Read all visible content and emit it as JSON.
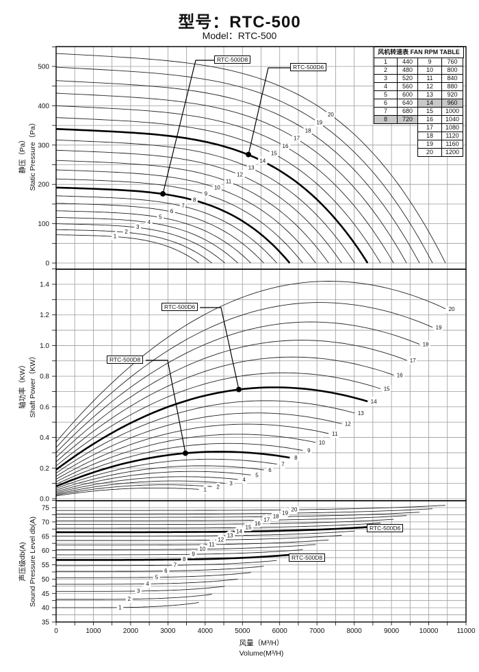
{
  "page": {
    "title_zh": "型号：RTC-500",
    "model_line": "Model：RTC-500"
  },
  "colors": {
    "highlight": "#c8c8c8",
    "grid": "#9a9a9a",
    "curve": "#222222",
    "bold_curve": "#000000",
    "text": "#111111"
  },
  "callouts": {
    "d8": "RTC-500D8",
    "d6": "RTC-500D6"
  },
  "fan_table": {
    "header": "风机转速表 FAN RPM TABLE",
    "highlighted_fans": [
      8,
      14
    ],
    "left_rows": [
      [
        1,
        440
      ],
      [
        2,
        480
      ],
      [
        3,
        520
      ],
      [
        4,
        560
      ],
      [
        5,
        600
      ],
      [
        6,
        640
      ],
      [
        7,
        680
      ],
      [
        8,
        720
      ]
    ],
    "right_rows": [
      [
        9,
        760
      ],
      [
        10,
        800
      ],
      [
        11,
        840
      ],
      [
        12,
        880
      ],
      [
        13,
        920
      ],
      [
        14,
        960
      ],
      [
        15,
        1000
      ],
      [
        16,
        1040
      ],
      [
        17,
        1080
      ],
      [
        18,
        1120
      ],
      [
        19,
        1160
      ],
      [
        20,
        1200
      ]
    ]
  },
  "x_axis": {
    "ticks": [
      "0",
      "1000",
      "2000",
      "3000",
      "4000",
      "5000",
      "6000",
      "7000",
      "8000",
      "9000",
      "10000",
      "11000"
    ],
    "range": [
      0,
      11000
    ],
    "title_zh": "风量（M³/H）",
    "title_en": "Volume(M³/H)"
  },
  "chart_data": [
    {
      "id": "static_pressure",
      "type": "line",
      "title_zh": "静压（Pa）",
      "title_en": "Static Pressure（Pa）",
      "ylim": [
        0,
        550
      ],
      "xlim": [
        0,
        11000
      ],
      "y_ticks": [
        "0",
        "100",
        "200",
        "300",
        "400",
        "500"
      ],
      "bold_fans": [
        8,
        14
      ],
      "curves": [
        {
          "fan": 1,
          "rpm": 440,
          "pa_at_q0": 72,
          "q_at_pa0": 3832
        },
        {
          "fan": 2,
          "rpm": 480,
          "pa_at_q0": 85,
          "q_at_pa0": 4180
        },
        {
          "fan": 3,
          "rpm": 520,
          "pa_at_q0": 100,
          "q_at_pa0": 4529
        },
        {
          "fan": 4,
          "rpm": 560,
          "pa_at_q0": 116,
          "q_at_pa0": 4877
        },
        {
          "fan": 5,
          "rpm": 600,
          "pa_at_q0": 133,
          "q_at_pa0": 5225
        },
        {
          "fan": 6,
          "rpm": 640,
          "pa_at_q0": 152,
          "q_at_pa0": 5573
        },
        {
          "fan": 7,
          "rpm": 680,
          "pa_at_q0": 171,
          "q_at_pa0": 5922
        },
        {
          "fan": 8,
          "rpm": 720,
          "pa_at_q0": 192,
          "q_at_pa0": 6270
        },
        {
          "fan": 9,
          "rpm": 760,
          "pa_at_q0": 214,
          "q_at_pa0": 6618
        },
        {
          "fan": 10,
          "rpm": 800,
          "pa_at_q0": 237,
          "q_at_pa0": 6967
        },
        {
          "fan": 11,
          "rpm": 840,
          "pa_at_q0": 261,
          "q_at_pa0": 7315
        },
        {
          "fan": 12,
          "rpm": 880,
          "pa_at_q0": 287,
          "q_at_pa0": 7663
        },
        {
          "fan": 13,
          "rpm": 920,
          "pa_at_q0": 313,
          "q_at_pa0": 8012
        },
        {
          "fan": 14,
          "rpm": 960,
          "pa_at_q0": 341,
          "q_at_pa0": 8360
        },
        {
          "fan": 15,
          "rpm": 1000,
          "pa_at_q0": 370,
          "q_at_pa0": 8708
        },
        {
          "fan": 16,
          "rpm": 1040,
          "pa_at_q0": 400,
          "q_at_pa0": 9057
        },
        {
          "fan": 17,
          "rpm": 1080,
          "pa_at_q0": 432,
          "q_at_pa0": 9405
        },
        {
          "fan": 18,
          "rpm": 1120,
          "pa_at_q0": 464,
          "q_at_pa0": 9753
        },
        {
          "fan": 19,
          "rpm": 1160,
          "pa_at_q0": 498,
          "q_at_pa0": 10102
        },
        {
          "fan": 20,
          "rpm": 1200,
          "pa_at_q0": 533,
          "q_at_pa0": 10450
        }
      ],
      "marked_points": [
        {
          "label": "RTC-500D8",
          "q": 2865,
          "pa": 176
        },
        {
          "label": "RTC-500D6",
          "q": 5161,
          "pa": 276
        }
      ]
    },
    {
      "id": "shaft_power",
      "type": "line",
      "title_zh": "轴功率（KW）",
      "title_en": "Shaft Power（KW）",
      "ylim": [
        0,
        1.5
      ],
      "xlim": [
        0,
        11000
      ],
      "y_ticks": [
        "0.0",
        "0.2",
        "0.4",
        "0.6",
        "0.8",
        "1.0",
        "1.2",
        "1.4"
      ],
      "bold_fans": [
        8,
        14
      ],
      "curves": [
        {
          "fan": 1,
          "rpm": 440,
          "kw_start": 0.018,
          "kw_peak": 0.07,
          "q_peak": 2682,
          "kw_end": 0.061,
          "q_end": 3832
        },
        {
          "fan": 2,
          "rpm": 480,
          "kw_start": 0.024,
          "kw_peak": 0.091,
          "q_peak": 2926,
          "kw_end": 0.079,
          "q_end": 4180
        },
        {
          "fan": 3,
          "rpm": 520,
          "kw_start": 0.03,
          "kw_peak": 0.116,
          "q_peak": 3170,
          "kw_end": 0.101,
          "q_end": 4529
        },
        {
          "fan": 4,
          "rpm": 560,
          "kw_start": 0.038,
          "kw_peak": 0.144,
          "q_peak": 3414,
          "kw_end": 0.126,
          "q_end": 4877
        },
        {
          "fan": 5,
          "rpm": 600,
          "kw_start": 0.046,
          "kw_peak": 0.178,
          "q_peak": 3658,
          "kw_end": 0.155,
          "q_end": 5225
        },
        {
          "fan": 6,
          "rpm": 640,
          "kw_start": 0.056,
          "kw_peak": 0.215,
          "q_peak": 3901,
          "kw_end": 0.188,
          "q_end": 5573
        },
        {
          "fan": 7,
          "rpm": 680,
          "kw_start": 0.067,
          "kw_peak": 0.258,
          "q_peak": 4145,
          "kw_end": 0.226,
          "q_end": 5922
        },
        {
          "fan": 8,
          "rpm": 720,
          "kw_start": 0.08,
          "kw_peak": 0.307,
          "q_peak": 4389,
          "kw_end": 0.268,
          "q_end": 6270
        },
        {
          "fan": 9,
          "rpm": 760,
          "kw_start": 0.094,
          "kw_peak": 0.361,
          "q_peak": 4633,
          "kw_end": 0.315,
          "q_end": 6618
        },
        {
          "fan": 10,
          "rpm": 800,
          "kw_start": 0.11,
          "kw_peak": 0.421,
          "q_peak": 4877,
          "kw_end": 0.367,
          "q_end": 6967
        },
        {
          "fan": 11,
          "rpm": 840,
          "kw_start": 0.127,
          "kw_peak": 0.487,
          "q_peak": 5121,
          "kw_end": 0.425,
          "q_end": 7315
        },
        {
          "fan": 12,
          "rpm": 880,
          "kw_start": 0.146,
          "kw_peak": 0.56,
          "q_peak": 5364,
          "kw_end": 0.489,
          "q_end": 7663
        },
        {
          "fan": 13,
          "rpm": 920,
          "kw_start": 0.167,
          "kw_peak": 0.64,
          "q_peak": 5608,
          "kw_end": 0.559,
          "q_end": 8012
        },
        {
          "fan": 14,
          "rpm": 960,
          "kw_start": 0.189,
          "kw_peak": 0.727,
          "q_peak": 5852,
          "kw_end": 0.635,
          "q_end": 8360
        },
        {
          "fan": 15,
          "rpm": 1000,
          "kw_start": 0.214,
          "kw_peak": 0.822,
          "q_peak": 6096,
          "kw_end": 0.718,
          "q_end": 8708
        },
        {
          "fan": 16,
          "rpm": 1040,
          "kw_start": 0.241,
          "kw_peak": 0.925,
          "q_peak": 6340,
          "kw_end": 0.807,
          "q_end": 9057
        },
        {
          "fan": 17,
          "rpm": 1080,
          "kw_start": 0.27,
          "kw_peak": 1.035,
          "q_peak": 6584,
          "kw_end": 0.904,
          "q_end": 9405
        },
        {
          "fan": 18,
          "rpm": 1120,
          "kw_start": 0.301,
          "kw_peak": 1.154,
          "q_peak": 6827,
          "kw_end": 1.008,
          "q_end": 9753
        },
        {
          "fan": 19,
          "rpm": 1160,
          "kw_start": 0.334,
          "kw_peak": 1.281,
          "q_peak": 7071,
          "kw_end": 1.119,
          "q_end": 10102
        },
        {
          "fan": 20,
          "rpm": 1200,
          "kw_start": 0.37,
          "kw_peak": 1.42,
          "q_peak": 7315,
          "kw_end": 1.24,
          "q_end": 10450
        }
      ],
      "marked_points": [
        {
          "label": "RTC-500D8",
          "q": 3471,
          "kw": 0.297
        },
        {
          "label": "RTC-500D6",
          "q": 4903,
          "kw": 0.713
        }
      ]
    },
    {
      "id": "sound_pressure_level",
      "type": "line",
      "title_zh": "声压级db(A)",
      "title_en": "Sound Pressure Level db(A)",
      "ylim": [
        35,
        77.5
      ],
      "xlim": [
        0,
        11000
      ],
      "y_ticks": [
        "35",
        "40",
        "45",
        "50",
        "55",
        "60",
        "65",
        "70",
        "75"
      ],
      "bold_fans": [
        8,
        14
      ],
      "curves": [
        {
          "fan": 1,
          "rpm": 440,
          "db_start": 40.0,
          "db_end": 41.8,
          "q_end": 3832
        },
        {
          "fan": 2,
          "rpm": 480,
          "db_start": 42.9,
          "db_end": 44.7,
          "q_end": 4180
        },
        {
          "fan": 3,
          "rpm": 520,
          "db_start": 45.7,
          "db_end": 47.5,
          "q_end": 4529
        },
        {
          "fan": 4,
          "rpm": 560,
          "db_start": 48.2,
          "db_end": 50.0,
          "q_end": 4877
        },
        {
          "fan": 5,
          "rpm": 600,
          "db_start": 50.5,
          "db_end": 52.3,
          "q_end": 5225
        },
        {
          "fan": 6,
          "rpm": 640,
          "db_start": 52.7,
          "db_end": 54.5,
          "q_end": 5573
        },
        {
          "fan": 7,
          "rpm": 680,
          "db_start": 54.7,
          "db_end": 56.5,
          "q_end": 5922
        },
        {
          "fan": 8,
          "rpm": 720,
          "db_start": 56.7,
          "db_end": 58.5,
          "q_end": 6270
        },
        {
          "fan": 9,
          "rpm": 760,
          "db_start": 58.5,
          "db_end": 60.3,
          "q_end": 6618
        },
        {
          "fan": 10,
          "rpm": 800,
          "db_start": 60.3,
          "db_end": 62.1,
          "q_end": 6967
        },
        {
          "fan": 11,
          "rpm": 840,
          "db_start": 61.9,
          "db_end": 63.7,
          "q_end": 7315
        },
        {
          "fan": 12,
          "rpm": 880,
          "db_start": 63.5,
          "db_end": 65.3,
          "q_end": 7663
        },
        {
          "fan": 13,
          "rpm": 920,
          "db_start": 65.0,
          "db_end": 66.8,
          "q_end": 8012
        },
        {
          "fan": 14,
          "rpm": 960,
          "db_start": 66.4,
          "db_end": 68.2,
          "q_end": 8360
        },
        {
          "fan": 15,
          "rpm": 1000,
          "db_start": 67.8,
          "db_end": 69.6,
          "q_end": 8708
        },
        {
          "fan": 16,
          "rpm": 1040,
          "db_start": 69.1,
          "db_end": 70.9,
          "q_end": 9057
        },
        {
          "fan": 17,
          "rpm": 1080,
          "db_start": 70.4,
          "db_end": 72.2,
          "q_end": 9405
        },
        {
          "fan": 18,
          "rpm": 1120,
          "db_start": 71.6,
          "db_end": 73.4,
          "q_end": 9753
        },
        {
          "fan": 19,
          "rpm": 1160,
          "db_start": 72.8,
          "db_end": 74.6,
          "q_end": 10102
        },
        {
          "fan": 20,
          "rpm": 1200,
          "db_start": 74.0,
          "db_end": 75.8,
          "q_end": 10450
        }
      ]
    }
  ]
}
